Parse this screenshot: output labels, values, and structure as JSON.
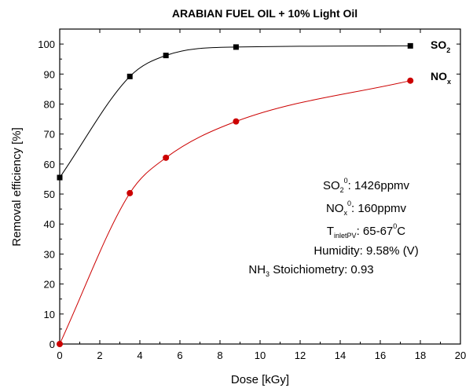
{
  "chart_data": {
    "type": "line",
    "title": "ARABIAN FUEL OIL + 10% Light Oil",
    "xlabel": "Dose [kGy]",
    "ylabel": "Removal efficiency [%]",
    "xlim": [
      0,
      20
    ],
    "ylim": [
      0,
      105
    ],
    "xticks": [
      0,
      2,
      4,
      6,
      8,
      10,
      12,
      14,
      16,
      18,
      20
    ],
    "yticks": [
      0,
      10,
      20,
      30,
      40,
      50,
      60,
      70,
      80,
      90,
      100
    ],
    "grid": false,
    "series": [
      {
        "name": "SO",
        "name_sub": "2",
        "color": "#000000",
        "marker": "square",
        "x": [
          0,
          3.5,
          5.3,
          8.8,
          17.5
        ],
        "y": [
          55.5,
          89.2,
          96.2,
          99.0,
          99.4
        ]
      },
      {
        "name": "NO",
        "name_sub": "x",
        "color": "#cc0000",
        "marker": "circle",
        "x": [
          0,
          3.5,
          5.3,
          8.8,
          17.5
        ],
        "y": [
          0,
          50.3,
          62.1,
          74.2,
          87.8
        ]
      }
    ],
    "annotations": {
      "so2": {
        "main": "SO",
        "sub": "2",
        "sup": "0",
        "value": ": 1426ppmv"
      },
      "nox": {
        "main": "NO",
        "sub": "x",
        "sup": "0",
        "value": ": 160ppmv"
      },
      "temp": {
        "main": "T",
        "sub": "inletPV",
        "value1": ": 65-67",
        "sup": "0",
        "value2": "C"
      },
      "humidity": {
        "text": "Humidity: 9.58% (V)"
      },
      "nh3": {
        "main": "NH",
        "sub": "3",
        "value": " Stoichiometry: 0.93"
      }
    }
  }
}
